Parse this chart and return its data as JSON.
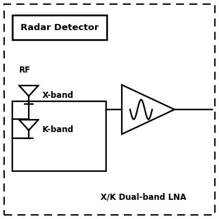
{
  "background_color": "#ffffff",
  "text_radar_detector": "Radar Detector",
  "text_rf": "RF",
  "text_xband": "X-band",
  "text_kband": "K-band",
  "text_lna": "X/K Dual-band LNA",
  "font_color": "#000000",
  "linewidth": 1.6,
  "fig_width": 3.2,
  "fig_height": 3.2,
  "dpi": 100
}
